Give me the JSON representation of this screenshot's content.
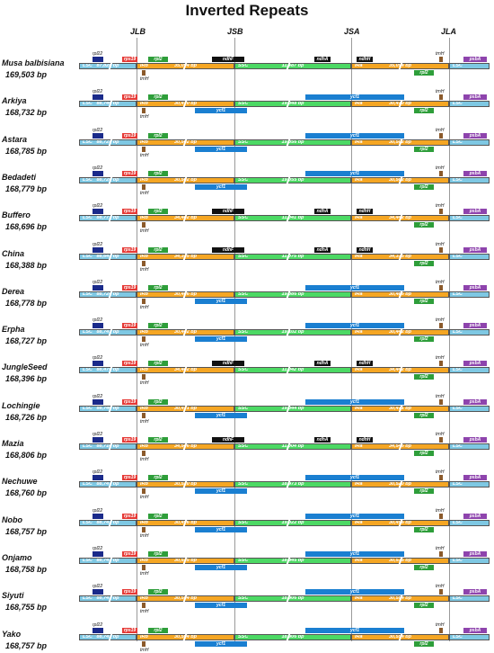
{
  "title": "Inverted Repeats",
  "junctions": [
    "JLB",
    "JSB",
    "JSA",
    "JLA"
  ],
  "regions": {
    "lsc": "LSC",
    "ir": "IRb",
    "ssc": "SSC",
    "ira": "IRa"
  },
  "rows": [
    {
      "name": "Musa balbisiana",
      "size": "169,503 bp",
      "lsc": "87,828 bp",
      "irb": "35,094 bp",
      "ssc": "11,487 bp",
      "ira": "35,094 bp"
    },
    {
      "name": "Arkiya",
      "size": "168,732 bp",
      "lsc": "88,744 bp",
      "irb": "30,470 bp",
      "ssc": "19,048 bp",
      "ira": "30,470 bp"
    },
    {
      "name": "Astara",
      "size": "168,785 bp",
      "lsc": "88,725 bp",
      "irb": "30,502 bp",
      "ssc": "19,056 bp",
      "ira": "30,502 bp"
    },
    {
      "name": "Bedadeti",
      "size": "168,779 bp",
      "lsc": "88,720 bp",
      "irb": "30,502 bp",
      "ssc": "19,055 bp",
      "ira": "30,502 bp"
    },
    {
      "name": "Buffero",
      "size": "168,696 bp",
      "lsc": "88,771 bp",
      "irb": "34,442 bp",
      "ssc": "11,041 bp",
      "ira": "34,442 bp"
    },
    {
      "name": "China",
      "size": "168,388 bp",
      "lsc": "88,643 bp",
      "irb": "34,335 bp",
      "ssc": "11,075 bp",
      "ira": "34,335 bp"
    },
    {
      "name": "Derea",
      "size": "168,778 bp",
      "lsc": "88,720 bp",
      "irb": "30,486 bp",
      "ssc": "19,086 bp",
      "ira": "30,486 bp"
    },
    {
      "name": "Erpha",
      "size": "168,727 bp",
      "lsc": "88,741 bp",
      "irb": "30,442 bp",
      "ssc": "19,102 bp",
      "ira": "30,442 bp"
    },
    {
      "name": "JungleSeed",
      "size": "168,396 bp",
      "lsc": "88,470 bp",
      "irb": "34,442 bp",
      "ssc": "11,042 bp",
      "ira": "34,442 bp"
    },
    {
      "name": "Lochingie",
      "size": "168,726 bp",
      "lsc": "88,740 bp",
      "irb": "30,471 bp",
      "ssc": "19,044 bp",
      "ira": "30,471 bp"
    },
    {
      "name": "Mazia",
      "size": "168,806 bp",
      "lsc": "88,710 bp",
      "irb": "34,546 bp",
      "ssc": "11,004 bp",
      "ira": "34,546 bp"
    },
    {
      "name": "Nechuwe",
      "size": "168,760 bp",
      "lsc": "88,747 bp",
      "irb": "30,520 bp",
      "ssc": "18,973 bp",
      "ira": "30,520 bp"
    },
    {
      "name": "Nobo",
      "size": "168,757 bp",
      "lsc": "88,743 bp",
      "irb": "30,496 bp",
      "ssc": "19,022 bp",
      "ira": "30,496 bp"
    },
    {
      "name": "Onjamo",
      "size": "168,758 bp",
      "lsc": "88,743 bp",
      "irb": "30,535 bp",
      "ssc": "18,945 bp",
      "ira": "30,535 bp"
    },
    {
      "name": "Siyuti",
      "size": "168,755 bp",
      "lsc": "88,741 bp",
      "irb": "30,554 bp",
      "ssc": "18,906 bp",
      "ira": "30,554 bp"
    },
    {
      "name": "Yako",
      "size": "168,757 bp",
      "lsc": "88,743 bp",
      "irb": "30,554 bp",
      "ssc": "18,906 bp",
      "ira": "30,554 bp"
    }
  ],
  "genes": {
    "rps19": "rps19",
    "rpl2": "rpl2",
    "rpl22": "rpl22",
    "trnH": "trnH",
    "ndhF": "ndhF",
    "ycf1": "ycf1",
    "ndhA": "ndhA",
    "ndhH": "ndhH",
    "psbA": "psbA"
  },
  "colors": {
    "lsc": "#7ec8e3",
    "ir": "#f5a623",
    "ssc": "#4cd964",
    "rps19": "#e53935",
    "rpl2": "#2e9e3a",
    "rpl22": "#1a2a8a",
    "ycf1": "#1a7fd1",
    "ndh": "#111111",
    "psbA": "#8e44ad",
    "trnH": "#8b5a2b"
  }
}
